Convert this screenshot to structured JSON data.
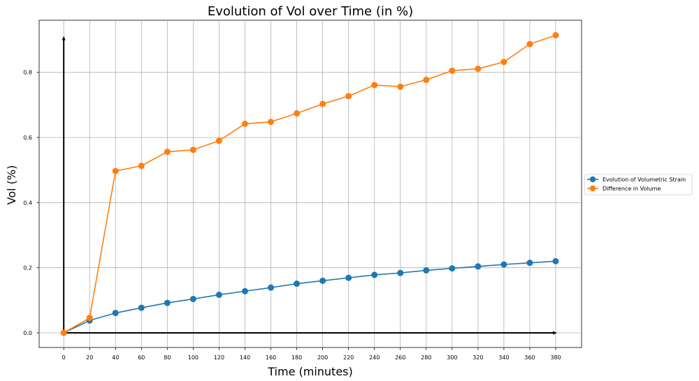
{
  "chart_data": {
    "type": "line",
    "title": "Evolution of Vol over Time (in %)",
    "xlabel": "Time (minutes)",
    "ylabel": "Vol (%)",
    "x": [
      0,
      20,
      40,
      60,
      80,
      100,
      120,
      140,
      160,
      180,
      200,
      220,
      240,
      260,
      280,
      300,
      320,
      340,
      360,
      380
    ],
    "x_ticks": [
      "0",
      "20",
      "40",
      "60",
      "80",
      "100",
      "120",
      "140",
      "160",
      "180",
      "200",
      "220",
      "240",
      "260",
      "280",
      "300",
      "320",
      "340",
      "360",
      "380"
    ],
    "y_ticks": [
      "0.0",
      "0.2",
      "0.4",
      "0.6",
      "0.8"
    ],
    "xlim": [
      -19,
      400
    ],
    "ylim": [
      -0.045,
      0.96
    ],
    "grid": true,
    "legend": "right",
    "series": [
      {
        "name": "Evolution of Volumetric Strain",
        "color": "#1f77b4",
        "values": [
          0.0,
          0.038,
          0.061,
          0.077,
          0.092,
          0.104,
          0.117,
          0.128,
          0.139,
          0.151,
          0.16,
          0.169,
          0.178,
          0.184,
          0.192,
          0.198,
          0.204,
          0.21,
          0.215,
          0.22
        ]
      },
      {
        "name": "Difference in Volume",
        "color": "#ff7f0e",
        "values": [
          0.0,
          0.046,
          0.497,
          0.513,
          0.556,
          0.562,
          0.59,
          0.642,
          0.648,
          0.674,
          0.703,
          0.727,
          0.761,
          0.756,
          0.777,
          0.805,
          0.811,
          0.832,
          0.887,
          0.914
        ]
      }
    ]
  }
}
